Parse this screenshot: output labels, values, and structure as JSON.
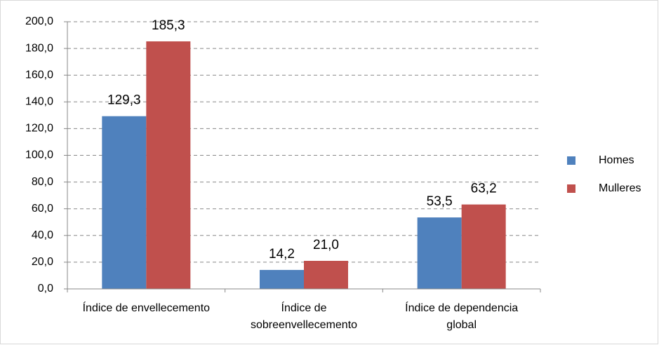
{
  "chart_data": {
    "type": "bar",
    "categories": [
      "Índice de envellecemento",
      "Índice de sobreenvellecemento",
      "Índice de dependencia global"
    ],
    "series": [
      {
        "name": "Homes",
        "color": "#4f81bd",
        "values": [
          129.3,
          14.2,
          53.5
        ],
        "value_labels": [
          "129,3",
          "14,2",
          "53,5"
        ]
      },
      {
        "name": "Mulleres",
        "color": "#c0504d",
        "values": [
          185.3,
          21.0,
          63.2
        ],
        "value_labels": [
          "185,3",
          "21,0",
          "63,2"
        ]
      }
    ],
    "ylim": [
      0,
      200
    ],
    "yticks": [
      {
        "value": 0,
        "label": "0,0"
      },
      {
        "value": 20,
        "label": "20,0"
      },
      {
        "value": 40,
        "label": "40,0"
      },
      {
        "value": 60,
        "label": "60,0"
      },
      {
        "value": 80,
        "label": "80,0"
      },
      {
        "value": 100,
        "label": "100,0"
      },
      {
        "value": 120,
        "label": "120,0"
      },
      {
        "value": 140,
        "label": "140,0"
      },
      {
        "value": 160,
        "label": "160,0"
      },
      {
        "value": 180,
        "label": "180,0"
      },
      {
        "value": 200,
        "label": "200,0"
      }
    ],
    "grid": true,
    "legend": "right"
  }
}
